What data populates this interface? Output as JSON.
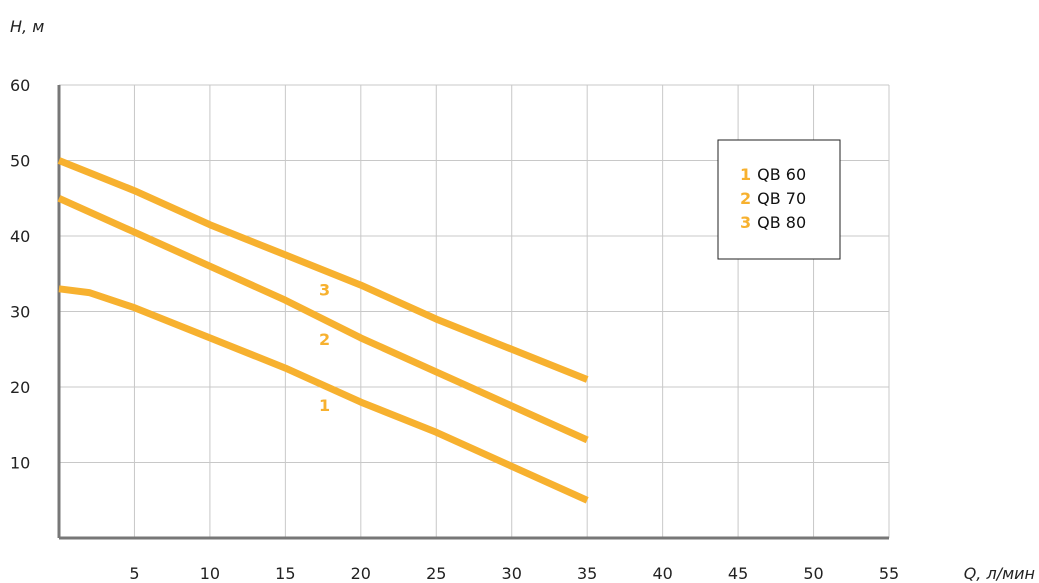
{
  "chart_data": {
    "type": "line",
    "xlabel": "Q, л/мин",
    "ylabel": "H, м",
    "xlim": [
      0,
      55
    ],
    "ylim": [
      0,
      60
    ],
    "x_ticks": [
      "5",
      "10",
      "15",
      "20",
      "25",
      "30",
      "35",
      "40",
      "45",
      "50",
      "55"
    ],
    "y_ticks": [
      "10",
      "20",
      "30",
      "40",
      "50",
      "60"
    ],
    "grid": true,
    "legend_position": "top-right",
    "line_color": "#F7B12F",
    "series": [
      {
        "name": "QB 60",
        "label": "1",
        "points": [
          [
            0,
            33
          ],
          [
            2,
            32.5
          ],
          [
            5,
            30.5
          ],
          [
            10,
            26.5
          ],
          [
            15,
            22.5
          ],
          [
            20,
            18
          ],
          [
            25,
            14
          ],
          [
            30,
            9.5
          ],
          [
            35,
            5
          ]
        ]
      },
      {
        "name": "QB 70",
        "label": "2",
        "points": [
          [
            0,
            45
          ],
          [
            5,
            40.5
          ],
          [
            10,
            36
          ],
          [
            15,
            31.5
          ],
          [
            20,
            26.5
          ],
          [
            25,
            22
          ],
          [
            30,
            17.5
          ],
          [
            35,
            13
          ]
        ]
      },
      {
        "name": "QB 80",
        "label": "3",
        "points": [
          [
            0,
            50
          ],
          [
            5,
            46
          ],
          [
            10,
            41.5
          ],
          [
            15,
            37.5
          ],
          [
            20,
            33.5
          ],
          [
            25,
            29
          ],
          [
            30,
            25
          ],
          [
            35,
            21
          ]
        ]
      }
    ]
  }
}
